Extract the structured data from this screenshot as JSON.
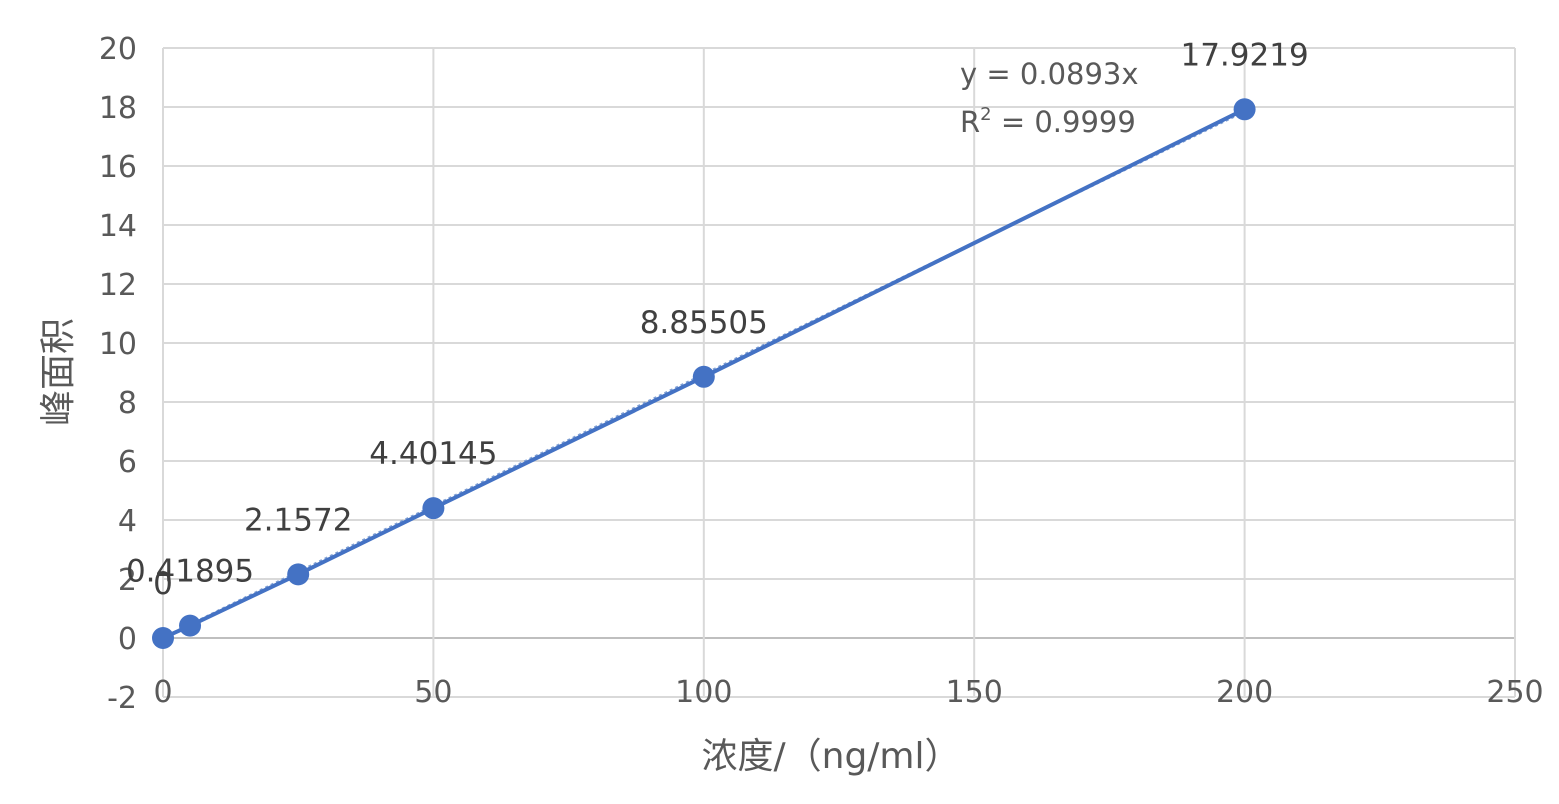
{
  "chart_data": {
    "type": "scatter",
    "xlabel": "浓度/（ng/ml）",
    "ylabel": "峰面积",
    "xlim": [
      0,
      250
    ],
    "ylim": [
      -2,
      20
    ],
    "x_ticks": [
      0,
      50,
      100,
      150,
      200,
      250
    ],
    "y_ticks": [
      -2,
      0,
      2,
      4,
      6,
      8,
      10,
      12,
      14,
      16,
      18,
      20
    ],
    "x_tick_labels": [
      "0",
      "50",
      "100",
      "150",
      "200",
      "250"
    ],
    "y_tick_labels": [
      "-2",
      "0",
      "2",
      "4",
      "6",
      "8",
      "10",
      "12",
      "14",
      "16",
      "18",
      "20"
    ],
    "grid": true,
    "series": [
      {
        "x": [
          0,
          5,
          25,
          50,
          100,
          200
        ],
        "y": [
          0,
          0.41895,
          2.1572,
          4.40145,
          8.85505,
          17.9219
        ],
        "labels": [
          "0",
          "0.41895",
          "2.1572",
          "4.40145",
          "8.85505",
          "17.9219"
        ],
        "color": "#4472C4"
      }
    ],
    "trendline": {
      "slope": 0.0893,
      "intercept": 0,
      "x_range": [
        0,
        200
      ],
      "equation": "y = 0.0893x",
      "r2_prefix": "R",
      "r2_sup": "2",
      "r2_suffix": " = 0.9999"
    }
  },
  "colors": {
    "marker": "#4472C4",
    "line": "#4472C4",
    "grid": "#D9D9D9",
    "text": "#595959"
  }
}
